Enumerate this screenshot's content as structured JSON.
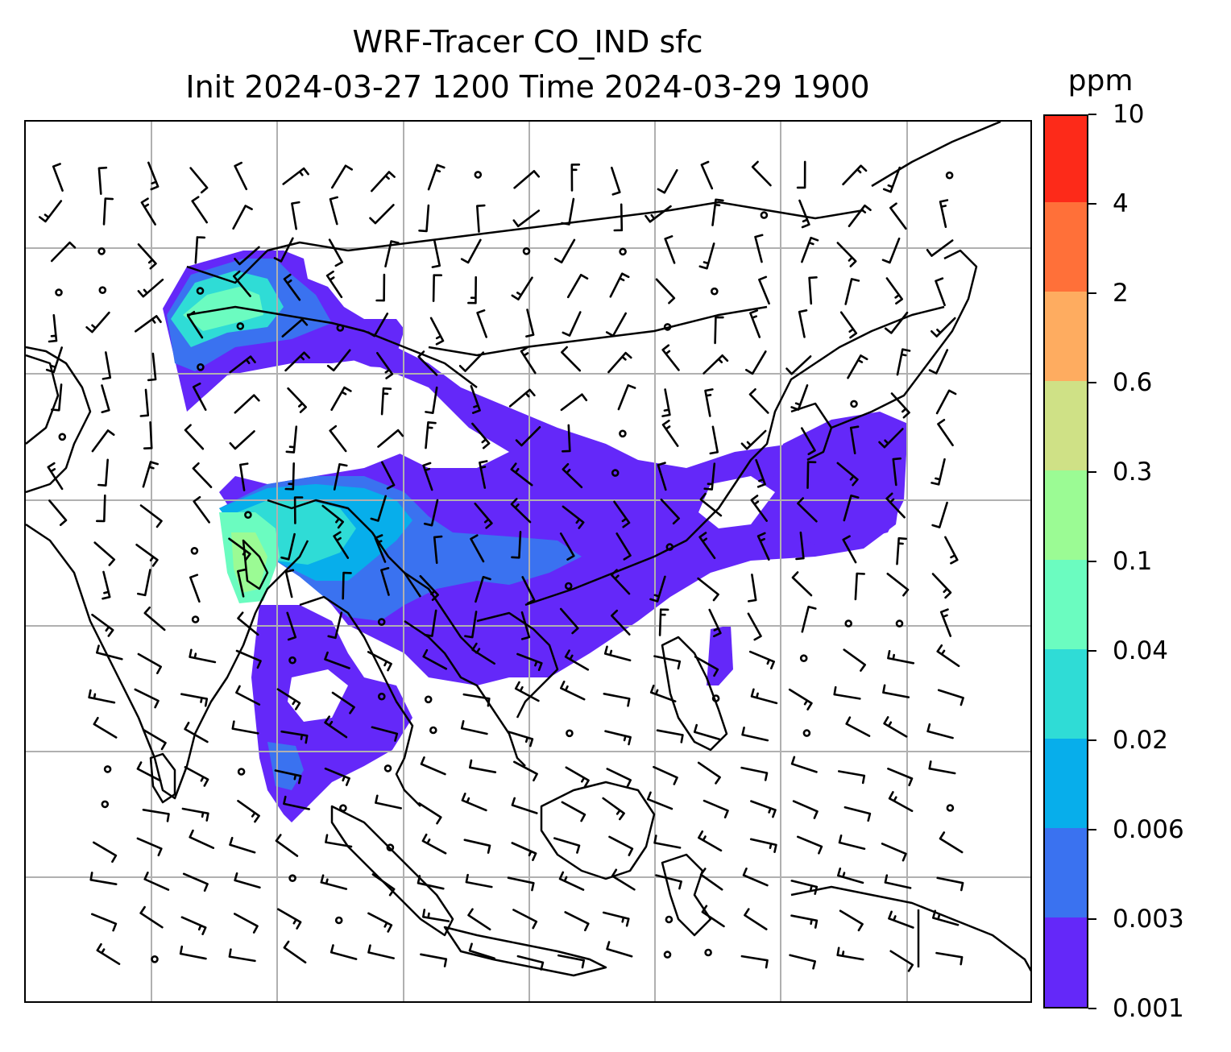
{
  "map": {
    "title_line1": "WRF-Tracer CO_IND sfc",
    "title_line2": "Init 2024-03-27 1200 Time 2024-03-29 1900",
    "variable": "CO_IND",
    "level": "sfc",
    "init_time": "2024-03-27 1200",
    "valid_time": "2024-03-29 1900",
    "colorbar": {
      "unit": "ppm",
      "levels": [
        "0.001",
        "0.003",
        "0.006",
        "0.02",
        "0.04",
        "0.1",
        "0.3",
        "0.6",
        "2",
        "4",
        "10"
      ],
      "colors": [
        "#6428f9",
        "#3a72f0",
        "#07aeeb",
        "#2fdcd6",
        "#6bfcc0",
        "#9bfb94",
        "#cfe186",
        "#feac60",
        "#ff7039",
        "#fd2a19"
      ]
    },
    "gridlines": true,
    "overlays": [
      "coastlines",
      "country-borders",
      "wind-barbs"
    ],
    "colors": {
      "coast": "#000000",
      "grid": "#b0b0b0",
      "barb": "#000000"
    }
  }
}
